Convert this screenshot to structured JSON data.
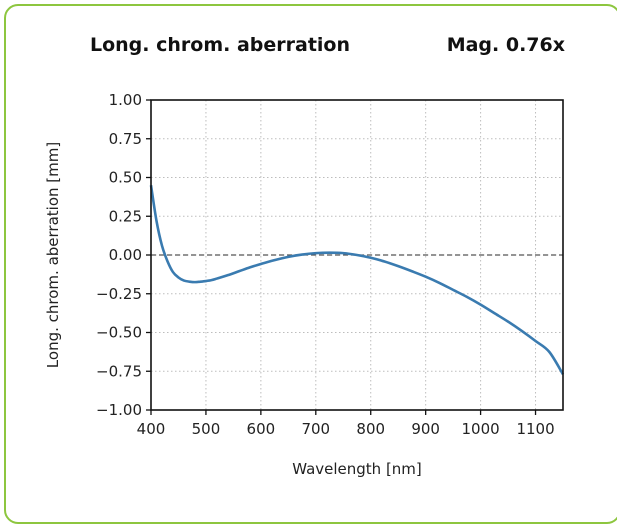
{
  "header": {
    "title_left": "Long. chrom. aberration",
    "title_right": "Mag. 0.76x"
  },
  "colors": {
    "frame_border": "#8dc63f",
    "series_line": "#3a7bb0",
    "zero_line": "#555555",
    "grid": "#bdbdbd"
  },
  "chart_data": {
    "type": "line",
    "title": "",
    "xlabel": "Wavelength [nm]",
    "ylabel": "Long. chrom. aberration [mm]",
    "xlim": [
      400,
      1150
    ],
    "ylim": [
      -1.0,
      1.0
    ],
    "grid": true,
    "legend": "none",
    "x_ticks": [
      400,
      500,
      600,
      700,
      800,
      900,
      1000,
      1100
    ],
    "x_tick_labels": [
      "400",
      "500",
      "600",
      "700",
      "800",
      "900",
      "1000",
      "1100"
    ],
    "y_ticks": [
      1.0,
      0.75,
      0.5,
      0.25,
      0.0,
      -0.25,
      -0.5,
      -0.75,
      -1.0
    ],
    "y_tick_labels": [
      "1.00",
      "0.75",
      "0.50",
      "0.25",
      "0.00",
      "−0.25",
      "−0.50",
      "−0.75",
      "−1.00"
    ],
    "reference_line": {
      "y": 0.0,
      "style": "dashed"
    },
    "series": [
      {
        "x": [
          400,
          410,
          420,
          430,
          440,
          450,
          460,
          470,
          480,
          490,
          500,
          510,
          520,
          540,
          560,
          580,
          600,
          625,
          650,
          675,
          700,
          725,
          750,
          775,
          800,
          825,
          850,
          875,
          900,
          925,
          950,
          975,
          1000,
          1025,
          1050,
          1075,
          1100,
          1125,
          1150
        ],
        "values": [
          0.45,
          0.22,
          0.06,
          -0.04,
          -0.11,
          -0.145,
          -0.165,
          -0.172,
          -0.175,
          -0.172,
          -0.168,
          -0.162,
          -0.152,
          -0.13,
          -0.105,
          -0.08,
          -0.058,
          -0.033,
          -0.012,
          0.003,
          0.012,
          0.015,
          0.012,
          0.0,
          -0.018,
          -0.042,
          -0.072,
          -0.105,
          -0.14,
          -0.18,
          -0.225,
          -0.27,
          -0.32,
          -0.375,
          -0.43,
          -0.49,
          -0.555,
          -0.625,
          -0.77
        ]
      }
    ]
  }
}
